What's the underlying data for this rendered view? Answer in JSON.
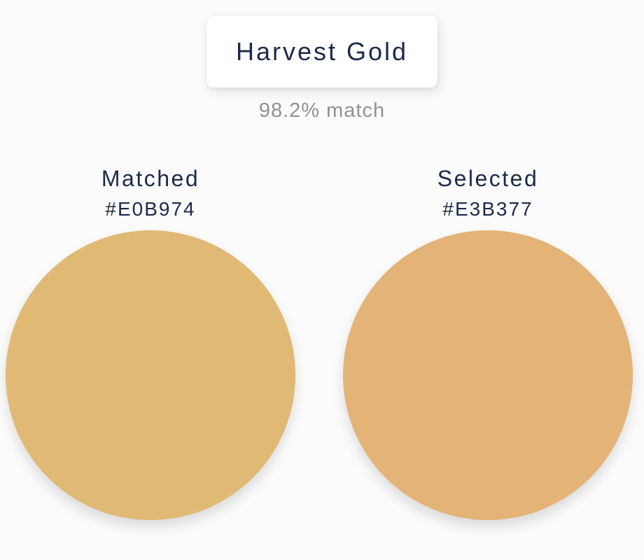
{
  "title_card": {
    "label": "Harvest Gold"
  },
  "match": {
    "text": "98.2% match"
  },
  "swatches": [
    {
      "label": "Matched",
      "hex": "#E0B974"
    },
    {
      "label": "Selected",
      "hex": "#E3B377"
    }
  ],
  "colors": {
    "text_navy": "#1c2a4a",
    "text_gray": "#929292",
    "page_background": "#fbfbfb",
    "card_background": "#ffffff"
  }
}
